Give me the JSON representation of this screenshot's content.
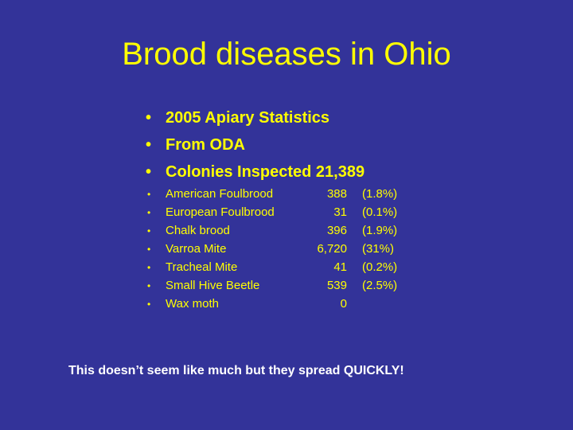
{
  "slide": {
    "title": "Brood diseases in Ohio",
    "major_bullets": [
      {
        "bullet": "•",
        "text": "2005 Apiary Statistics"
      },
      {
        "bullet": "•",
        "text": "From ODA"
      },
      {
        "bullet": "•",
        "text": "Colonies Inspected  21,389"
      }
    ],
    "diseases": [
      {
        "bullet": "•",
        "name": "American Foulbrood",
        "count": "388",
        "percent": "(1.8%)"
      },
      {
        "bullet": "•",
        "name": "European Foulbrood",
        "count": "31",
        "percent": "(0.1%)"
      },
      {
        "bullet": "•",
        "name": "Chalk brood",
        "count": "396",
        "percent": "(1.9%)"
      },
      {
        "bullet": "•",
        "name": "Varroa Mite",
        "count": "6,720",
        "percent": "(31%)"
      },
      {
        "bullet": "•",
        "name": "Tracheal Mite",
        "count": "41",
        "percent": "(0.2%)"
      },
      {
        "bullet": "•",
        "name": "Small Hive Beetle",
        "count": "539",
        "percent": "(2.5%)"
      },
      {
        "bullet": "•",
        "name": "Wax moth",
        "count": "0",
        "percent": ""
      }
    ],
    "footer": "This doesn’t seem like much but they spread QUICKLY!"
  },
  "colors": {
    "background": "#333399",
    "text": "#ffff00",
    "footer_text": "#ffffff"
  }
}
